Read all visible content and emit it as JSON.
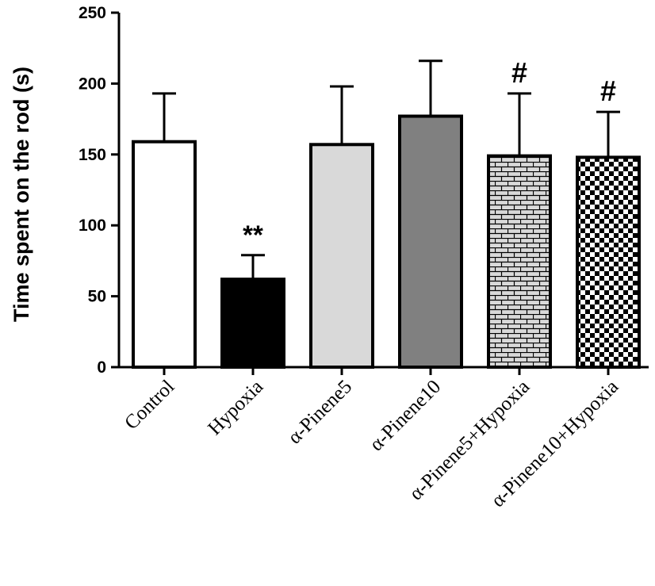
{
  "chart_data": {
    "type": "bar",
    "title": "",
    "xlabel": "",
    "ylabel": "Time spent on the rod (s)",
    "ylim": [
      0,
      250
    ],
    "yticks": [
      0,
      50,
      100,
      150,
      200,
      250
    ],
    "grid": false,
    "categories": [
      "Control",
      "Hypoxia",
      "α-Pinene5",
      "α-Pinene10",
      "α-Pinene5+Hypoxia",
      "α-Pinene10+Hypoxia"
    ],
    "values": [
      159,
      62,
      157,
      177,
      149,
      148
    ],
    "errors": [
      34,
      17,
      41,
      39,
      44,
      32
    ],
    "annotations": [
      "",
      "**",
      "",
      "",
      "#",
      "#"
    ],
    "fills": [
      "white",
      "black",
      "light-gray",
      "dark-gray",
      "brick-pattern",
      "checker-pattern"
    ],
    "colors": {
      "white": "#ffffff",
      "black": "#000000",
      "light_gray": "#d9d9d9",
      "dark_gray": "#808080",
      "outline": "#000000"
    }
  }
}
